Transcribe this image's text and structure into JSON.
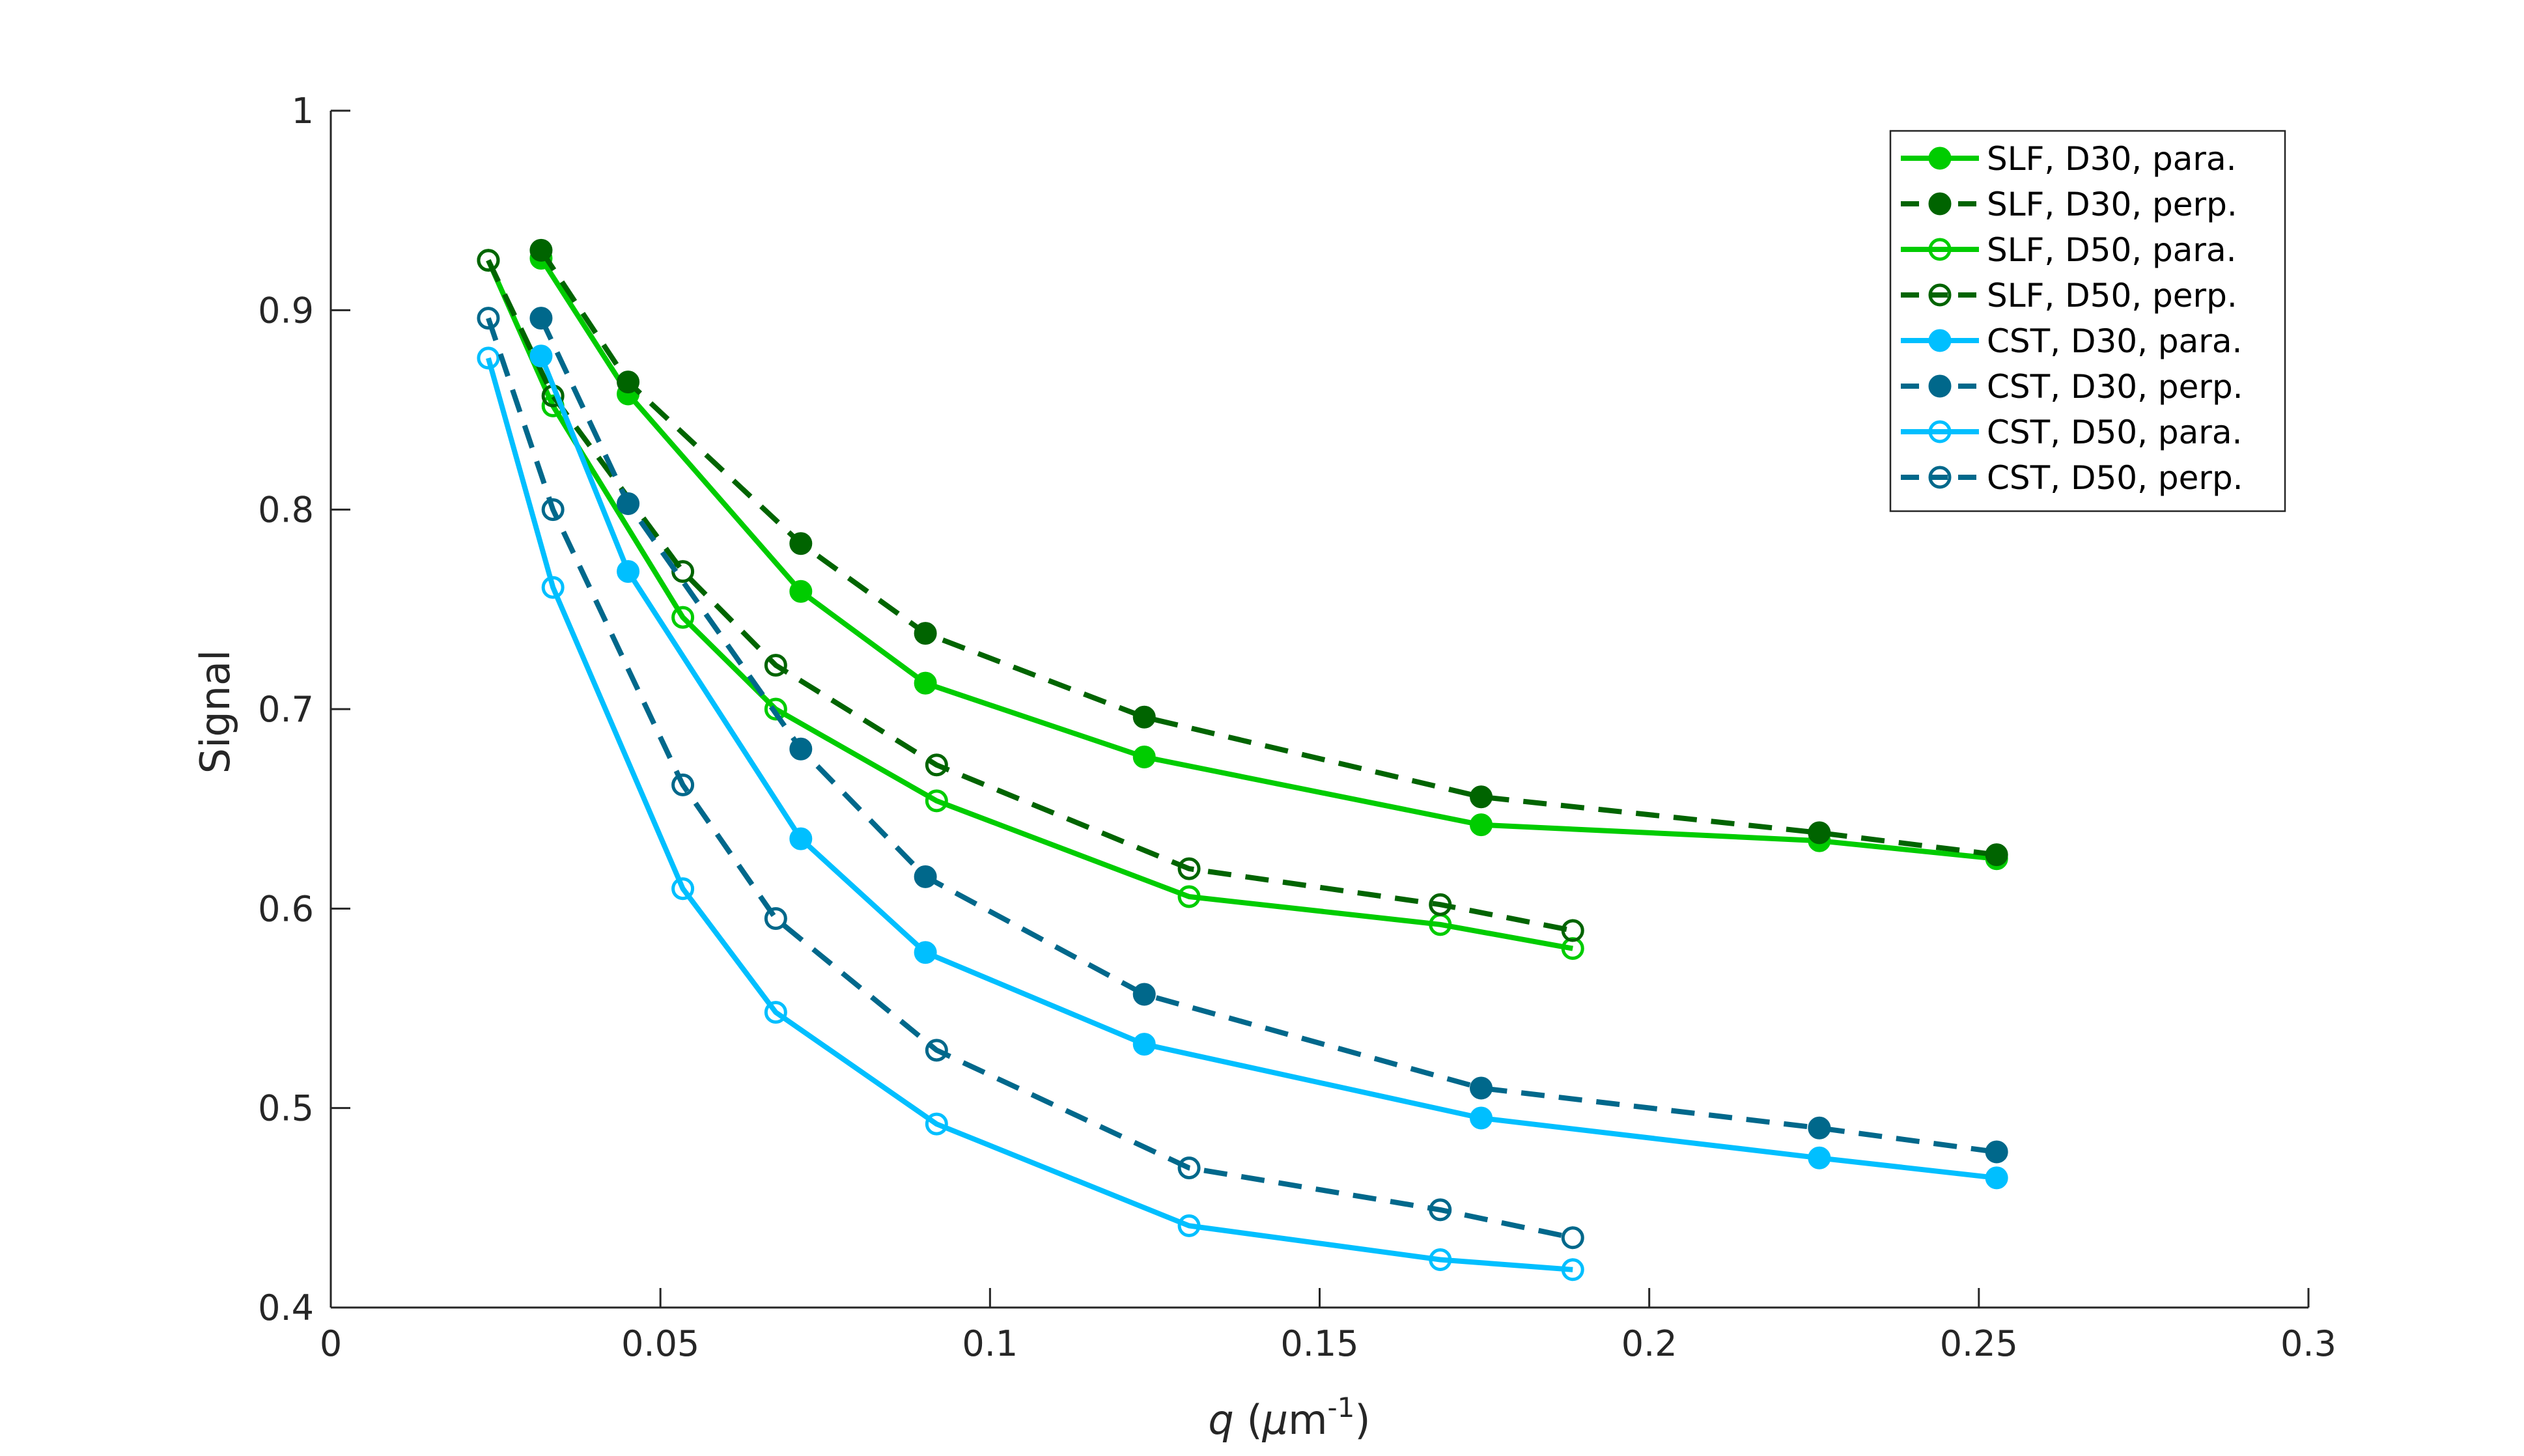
{
  "chart_data": {
    "type": "line",
    "title": "",
    "xlabel": "q (μm-1)",
    "xlabel_parts": {
      "var": "q",
      "unit_pre": " (",
      "mu": "μ",
      "unit_m": "m",
      "sup": "-1",
      "unit_post": ")"
    },
    "ylabel": "Signal",
    "xlim": [
      0,
      0.3
    ],
    "ylim": [
      0.4,
      1
    ],
    "xticks": [
      0,
      0.05,
      0.1,
      0.15,
      0.2,
      0.25,
      0.3
    ],
    "xtick_labels": [
      "0",
      "0.05",
      "0.1",
      "0.15",
      "0.2",
      "0.25",
      "0.3"
    ],
    "yticks": [
      0.4,
      0.5,
      0.6,
      0.7,
      0.8,
      0.9,
      1
    ],
    "ytick_labels": [
      "0.4",
      "0.5",
      "0.6",
      "0.7",
      "0.8",
      "0.9",
      "1"
    ],
    "grid": false,
    "legend_position": "top-right",
    "series": [
      {
        "name": "SLF, D30, para.",
        "color": "#00cc00",
        "line": "solid",
        "marker": "filled",
        "x": [
          0.0319,
          0.0451,
          0.0713,
          0.0902,
          0.1234,
          0.1745,
          0.2258,
          0.2527
        ],
        "y": [
          0.926,
          0.858,
          0.759,
          0.713,
          0.676,
          0.642,
          0.634,
          0.625
        ]
      },
      {
        "name": "SLF, D30, perp.",
        "color": "#006400",
        "line": "dashed",
        "marker": "filled",
        "x": [
          0.0319,
          0.0451,
          0.0713,
          0.0902,
          0.1234,
          0.1745,
          0.2258,
          0.2527
        ],
        "y": [
          0.93,
          0.864,
          0.783,
          0.738,
          0.696,
          0.656,
          0.638,
          0.627
        ]
      },
      {
        "name": "SLF, D50, para.",
        "color": "#00cc00",
        "line": "solid",
        "marker": "open",
        "x": [
          0.0239,
          0.0337,
          0.0534,
          0.0675,
          0.0919,
          0.1302,
          0.1683,
          0.1884
        ],
        "y": [
          0.925,
          0.852,
          0.746,
          0.7,
          0.654,
          0.606,
          0.592,
          0.58
        ]
      },
      {
        "name": "SLF, D50, perp.",
        "color": "#006400",
        "line": "dashed",
        "marker": "open",
        "x": [
          0.0239,
          0.0337,
          0.0534,
          0.0675,
          0.0919,
          0.1302,
          0.1683,
          0.1884
        ],
        "y": [
          0.925,
          0.857,
          0.769,
          0.722,
          0.672,
          0.62,
          0.602,
          0.589
        ]
      },
      {
        "name": "CST, D30, para.",
        "color": "#00bfff",
        "line": "solid",
        "marker": "filled",
        "x": [
          0.0319,
          0.0451,
          0.0713,
          0.0902,
          0.1234,
          0.1745,
          0.2258,
          0.2527
        ],
        "y": [
          0.877,
          0.769,
          0.635,
          0.578,
          0.532,
          0.495,
          0.475,
          0.465
        ]
      },
      {
        "name": "CST, D30, perp.",
        "color": "#00688b",
        "line": "dashed",
        "marker": "filled",
        "x": [
          0.0319,
          0.0451,
          0.0713,
          0.0902,
          0.1234,
          0.1745,
          0.2258,
          0.2527
        ],
        "y": [
          0.896,
          0.803,
          0.68,
          0.616,
          0.557,
          0.51,
          0.49,
          0.478
        ]
      },
      {
        "name": "CST, D50, para.",
        "color": "#00bfff",
        "line": "solid",
        "marker": "open",
        "x": [
          0.0239,
          0.0337,
          0.0534,
          0.0675,
          0.0919,
          0.1302,
          0.1683,
          0.1884
        ],
        "y": [
          0.876,
          0.761,
          0.61,
          0.548,
          0.492,
          0.441,
          0.424,
          0.419
        ]
      },
      {
        "name": "CST, D50, perp.",
        "color": "#00688b",
        "line": "dashed",
        "marker": "open",
        "x": [
          0.0239,
          0.0337,
          0.0534,
          0.0675,
          0.0919,
          0.1302,
          0.1683,
          0.1884
        ],
        "y": [
          0.896,
          0.8,
          0.662,
          0.595,
          0.529,
          0.47,
          0.449,
          0.435
        ]
      }
    ]
  }
}
